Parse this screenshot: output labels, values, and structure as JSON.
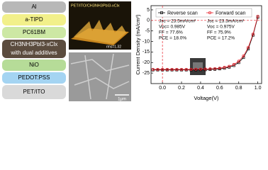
{
  "layers": [
    "Al",
    "a-TIPD",
    "PC61BM",
    "CH3NH3PbI3-xClx",
    "with dual additives",
    "NiO",
    "PEDOT:PSS",
    "PET/ITO"
  ],
  "afm": {
    "title": "PET/ITO/CH3NH3PbI3-xClx",
    "rms": "rms=1.32"
  },
  "sem": {
    "scale": "1μm"
  },
  "chart_data": {
    "type": "line",
    "x_label": "Voltage(V)",
    "y_label": "Current Density (mA/cm²)",
    "x": [
      -0.1,
      -0.05,
      0.0,
      0.05,
      0.1,
      0.15,
      0.2,
      0.25,
      0.3,
      0.35,
      0.4,
      0.45,
      0.5,
      0.55,
      0.6,
      0.65,
      0.7,
      0.75,
      0.8,
      0.85,
      0.9,
      0.95,
      1.0
    ],
    "series": [
      {
        "name": "Reverse scan",
        "color": "#000000",
        "marker": "square",
        "values": [
          -23.5,
          -23.5,
          -23.5,
          -23.5,
          -23.5,
          -23.5,
          -23.5,
          -23.5,
          -23.5,
          -23.5,
          -23.4,
          -23.4,
          -23.3,
          -23.2,
          -23.0,
          -22.7,
          -22.2,
          -21.4,
          -20.0,
          -17.6,
          -13.5,
          -7.0,
          1.5
        ]
      },
      {
        "name": "Forward scan",
        "color": "#e8202a",
        "marker": "circle",
        "values": [
          -23.3,
          -23.3,
          -23.3,
          -23.3,
          -23.3,
          -23.3,
          -23.3,
          -23.3,
          -23.3,
          -23.2,
          -23.2,
          -23.1,
          -23.0,
          -22.9,
          -22.7,
          -22.3,
          -21.8,
          -20.9,
          -19.4,
          -16.9,
          -12.8,
          -6.5,
          2.0
        ]
      }
    ],
    "annotations": [
      [
        "Jsc = 23.5mA/cm²",
        "Voc= 0.985V",
        "FF = 77.6%",
        "PCE = 18.0%"
      ],
      [
        "Jsc = 23.3mA/cm²",
        "Voc = 0.975V",
        "FF = 75.9%",
        "PCE = 17.2%"
      ]
    ],
    "xlim": [
      -0.12,
      1.04
    ],
    "xticks": [
      {
        "value": 0,
        "label": "0.0"
      },
      0.2,
      0.4,
      0.6,
      0.8,
      {
        "value": 1,
        "label": "1.0"
      }
    ],
    "ylim": [
      -30,
      7
    ],
    "yticks": [
      5,
      0,
      -5,
      -10,
      -15,
      -20,
      -25
    ]
  }
}
